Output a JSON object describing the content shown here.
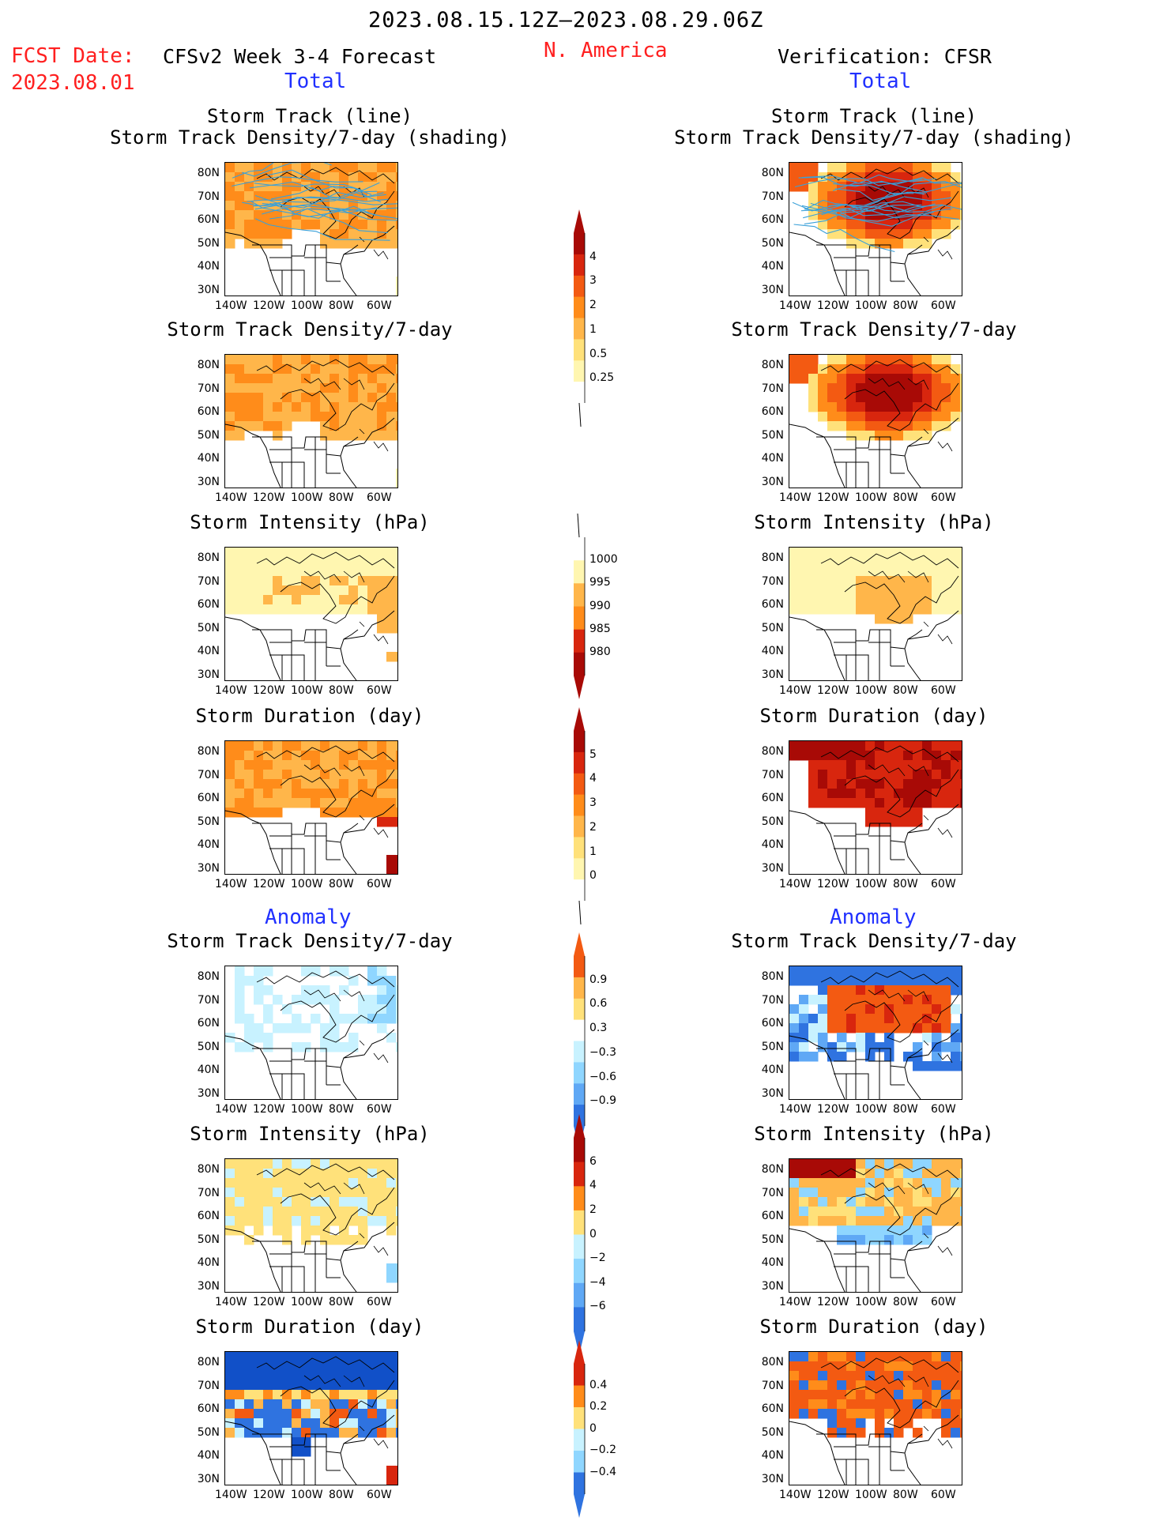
{
  "header": {
    "period": "2023.08.15.12Z–2023.08.29.06Z",
    "region": "N. America",
    "fcst_label": "FCST Date:",
    "fcst_date": "2023.08.01",
    "left_title": "CFSv2 Week 3-4 Forecast",
    "right_title": "Verification: CFSR",
    "total_label": "Total",
    "anomaly_label": "Anomaly"
  },
  "axes": {
    "lat_ticks": [
      "80N",
      "70N",
      "60N",
      "50N",
      "40N",
      "30N"
    ],
    "lon_ticks": [
      "140W",
      "120W",
      "100W",
      "80W",
      "60W"
    ]
  },
  "panels": {
    "track_line": {
      "title1": "Storm Track (line)",
      "title2": "Storm Track Density/7-day (shading)"
    },
    "density": {
      "title": "Storm Track Density/7-day"
    },
    "intensity": {
      "title": "Storm Intensity (hPa)"
    },
    "duration": {
      "title": "Storm Duration (day)"
    }
  },
  "colorbars": {
    "density_total": [
      "4",
      "3",
      "2",
      "1",
      "0.5",
      "0.25"
    ],
    "intensity_total": [
      "1000",
      "995",
      "990",
      "985",
      "980"
    ],
    "duration_total": [
      "5",
      "4",
      "3",
      "2",
      "1",
      "0"
    ],
    "density_anom": [
      "0.9",
      "0.6",
      "0.3",
      "−0.3",
      "−0.6",
      "−0.9"
    ],
    "intensity_anom": [
      "6",
      "4",
      "2",
      "0",
      "−2",
      "−4",
      "−6"
    ],
    "duration_anom": [
      "0.4",
      "0.2",
      "0",
      "−0.2",
      "−0.4"
    ]
  },
  "colors": {
    "warm": [
      "#fff6b0",
      "#ffe17a",
      "#ffb64a",
      "#ff8c1a",
      "#f35a12",
      "#d8260e",
      "#a80a06"
    ],
    "cool": [
      "#c8f2ff",
      "#8fd6ff",
      "#5fa8f5",
      "#2f73e0",
      "#1150c8"
    ],
    "track_line": "#3aa0d8"
  }
}
